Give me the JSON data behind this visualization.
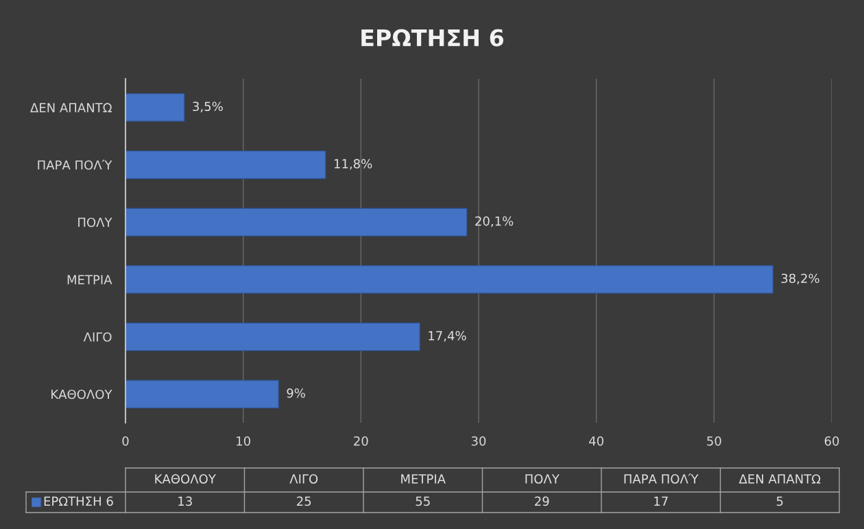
{
  "chart_data": [
    {
      "type": "bar",
      "orientation": "horizontal",
      "title": "ΕΡΩΤΗΣΗ 6",
      "categories": [
        "ΔΕΝ ΑΠΑΝΤΩ",
        "ΠΑΡΑ ΠΟΛΎ",
        "ΠΟΛΥ",
        "ΜΕΤΡΙΑ",
        "ΛΙΓΟ",
        "ΚΑΘΟΛΟΥ"
      ],
      "series": [
        {
          "color": "#4472c4",
          "values": [
            5,
            17,
            29,
            55,
            25,
            13
          ]
        }
      ],
      "annotations": [
        {
          "text": "3,5%",
          "x": 5,
          "y": "ΔΕΝ ΑΠΑΝΤΩ"
        },
        {
          "text": "11,8%",
          "x": 17,
          "y": "ΠΑΡΑ ΠΟΛΎ"
        },
        {
          "text": "20,1%",
          "x": 29,
          "y": "ΠΟΛΥ"
        },
        {
          "text": "38,2%",
          "x": 55,
          "y": "ΜΕΤΡΙΑ"
        },
        {
          "text": "17,4%",
          "x": 25,
          "y": "ΛΙΓΟ"
        },
        {
          "text": "9%",
          "x": 13,
          "y": "ΚΑΘΟΛΟΥ"
        }
      ],
      "xlim": [
        0,
        60
      ],
      "xticks": [
        0,
        10,
        20,
        30,
        40,
        50,
        60
      ],
      "grid": "x"
    },
    {
      "type": "other",
      "categories": [
        "ΚΑΘΟΛΟΥ",
        "ΛΙΓΟ",
        "ΜΕΤΡΙΑ",
        "ΠΟΛΥ",
        "ΠΑΡΑ ΠΟΛΎ",
        "ΔΕΝ ΑΠΑΝΤΩ"
      ],
      "series": [
        {
          "name": "ΕΡΩΤΗΣΗ 6",
          "color": "#4472c4",
          "values": [
            13,
            25,
            55,
            29,
            17,
            5
          ]
        }
      ],
      "data_labels": true
    }
  ]
}
